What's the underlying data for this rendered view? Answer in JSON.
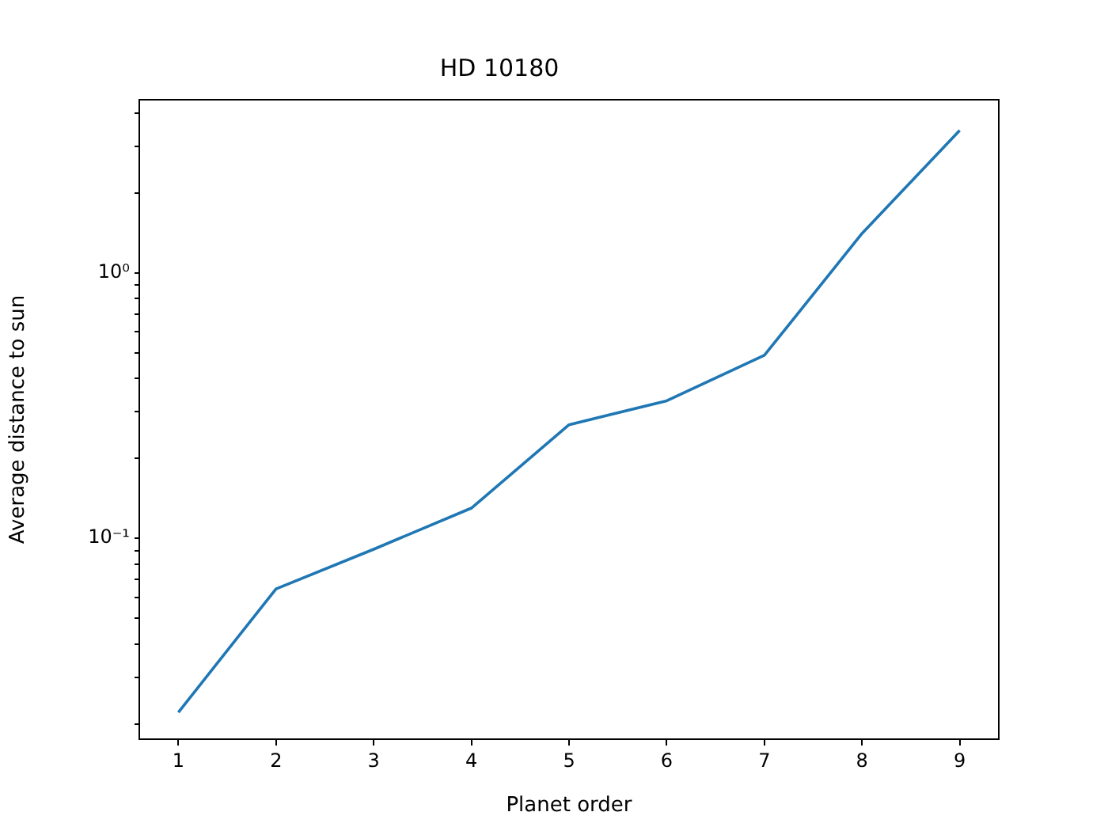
{
  "chart_data": {
    "type": "line",
    "title": "HD 10180",
    "xlabel": "Planet order",
    "ylabel": "Average distance to sun",
    "x": [
      1,
      2,
      3,
      4,
      5,
      6,
      7,
      8,
      9
    ],
    "series": [
      {
        "color": "#1f77b4",
        "values": [
          0.0221,
          0.0645,
          0.091,
          0.13,
          0.268,
          0.33,
          0.49,
          1.41,
          3.45
        ]
      }
    ],
    "xlim": [
      0.6,
      9.4
    ],
    "xticks": [
      1,
      2,
      3,
      4,
      5,
      6,
      7,
      8,
      9
    ],
    "ylim": [
      0.0175,
      4.5
    ],
    "yticks": [
      {
        "value": 0.02,
        "label": null
      },
      {
        "value": 0.03,
        "label": null
      },
      {
        "value": 0.04,
        "label": null
      },
      {
        "value": 0.05,
        "label": null
      },
      {
        "value": 0.06,
        "label": null
      },
      {
        "value": 0.07,
        "label": null
      },
      {
        "value": 0.08,
        "label": null
      },
      {
        "value": 0.09,
        "label": null
      },
      {
        "value": 0.1,
        "label": "10⁻¹"
      },
      {
        "value": 0.2,
        "label": null
      },
      {
        "value": 0.3,
        "label": null
      },
      {
        "value": 0.4,
        "label": null
      },
      {
        "value": 0.5,
        "label": null
      },
      {
        "value": 0.6,
        "label": null
      },
      {
        "value": 0.7,
        "label": null
      },
      {
        "value": 0.8,
        "label": null
      },
      {
        "value": 0.9,
        "label": null
      },
      {
        "value": 1,
        "label": "10⁰"
      },
      {
        "value": 2,
        "label": null
      },
      {
        "value": 3,
        "label": null
      },
      {
        "value": 4,
        "label": null
      }
    ],
    "log": "y",
    "grid": false,
    "legend": false,
    "marker": "none",
    "line_style": "solid"
  }
}
